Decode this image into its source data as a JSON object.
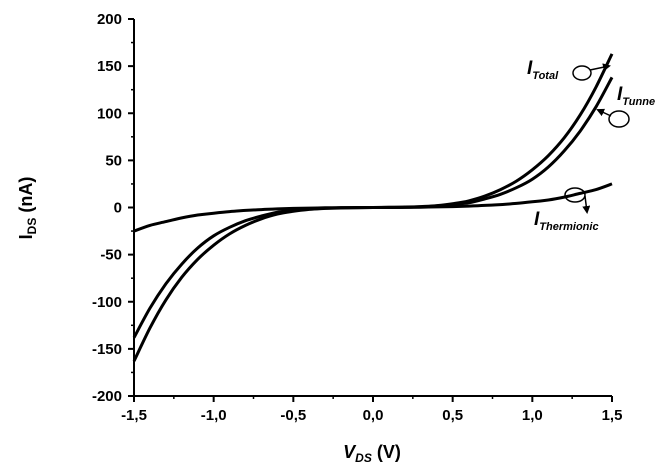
{
  "chart_data": {
    "type": "line",
    "xlim": [
      -1.5,
      1.5
    ],
    "ylim": [
      -200,
      200
    ],
    "xticks": [
      "-1,5",
      "-1,0",
      "-0,5",
      "0,0",
      "0,5",
      "1,0",
      "1,5"
    ],
    "yticks": [
      "200",
      "150",
      "100",
      "50",
      "0",
      "-50",
      "-100",
      "-150",
      "-200"
    ],
    "xlabel": {
      "main": "V",
      "sub": "DS",
      "unit": " (V)"
    },
    "ylabel": {
      "main": "I",
      "sub": "DS",
      "unit": " (nA)"
    },
    "grid": false,
    "x": [
      -1.5,
      -1.4,
      -1.3,
      -1.2,
      -1.1,
      -1.0,
      -0.9,
      -0.8,
      -0.7,
      -0.6,
      -0.5,
      -0.4,
      -0.3,
      -0.2,
      -0.1,
      0.0,
      0.1,
      0.2,
      0.3,
      0.4,
      0.5,
      0.6,
      0.7,
      0.8,
      0.9,
      1.0,
      1.1,
      1.2,
      1.3,
      1.4,
      1.5
    ],
    "series": [
      {
        "name": "I_Total",
        "values": [
          -163,
          -128,
          -98,
          -74,
          -55,
          -40,
          -28,
          -19,
          -12,
          -7,
          -4,
          -2,
          -1,
          -0.5,
          -0.2,
          0,
          0.2,
          0.5,
          1,
          2,
          4,
          7,
          12,
          19,
          28,
          40,
          55,
          74,
          98,
          128,
          163
        ]
      },
      {
        "name": "I_Tunnel",
        "values": [
          -138,
          -107,
          -81,
          -60,
          -43,
          -30,
          -21,
          -14,
          -9,
          -5,
          -3,
          -1.5,
          -0.7,
          -0.3,
          -0.1,
          0,
          0.1,
          0.3,
          0.7,
          1.5,
          3,
          5,
          9,
          14,
          21,
          30,
          43,
          60,
          81,
          107,
          138
        ]
      },
      {
        "name": "I_Thermionic",
        "values": [
          -25,
          -19,
          -15,
          -11,
          -8,
          -6,
          -4.3,
          -3.1,
          -2.2,
          -1.5,
          -1,
          -0.6,
          -0.35,
          -0.15,
          -0.05,
          0,
          0.05,
          0.15,
          0.35,
          0.6,
          1,
          1.5,
          2.2,
          3.1,
          4.3,
          6,
          8,
          11,
          15,
          19,
          25
        ]
      }
    ],
    "annotations": [
      {
        "main": "I",
        "sub": "Total"
      },
      {
        "main": "I",
        "sub": "Tunne"
      },
      {
        "main": "I",
        "sub": "Thermionic"
      }
    ]
  }
}
